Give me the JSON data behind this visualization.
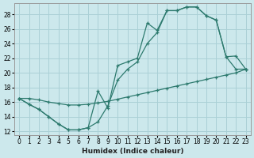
{
  "xlabel": "Humidex (Indice chaleur)",
  "bg_color": "#cce8ec",
  "grid_color": "#aad0d6",
  "line_color": "#2d7a6e",
  "xlim": [
    -0.5,
    23.5
  ],
  "ylim": [
    11.5,
    29.5
  ],
  "xticks": [
    0,
    1,
    2,
    3,
    4,
    5,
    6,
    7,
    8,
    9,
    10,
    11,
    12,
    13,
    14,
    15,
    16,
    17,
    18,
    19,
    20,
    21,
    22,
    23
  ],
  "yticks": [
    12,
    14,
    16,
    18,
    20,
    22,
    24,
    26,
    28
  ],
  "line1_x": [
    0,
    1,
    2,
    3,
    4,
    5,
    6,
    7,
    8,
    9,
    10,
    11,
    12,
    13,
    14,
    15,
    16,
    17,
    18,
    19,
    20,
    21,
    22,
    23
  ],
  "line1_y": [
    16.5,
    15.7,
    15.0,
    14.0,
    13.0,
    12.2,
    12.2,
    12.5,
    13.3,
    15.5,
    19.0,
    20.5,
    21.5,
    24.0,
    25.5,
    28.5,
    28.5,
    29.0,
    29.0,
    27.8,
    27.2,
    22.2,
    22.3,
    20.5
  ],
  "line2_x": [
    0,
    1,
    2,
    3,
    4,
    5,
    6,
    7,
    8,
    9,
    10,
    11,
    12,
    13,
    14,
    15,
    16,
    17,
    18,
    19,
    20,
    21,
    22,
    23
  ],
  "line2_y": [
    16.5,
    15.7,
    15.0,
    14.0,
    13.0,
    12.2,
    12.2,
    12.5,
    17.5,
    15.2,
    21.0,
    21.5,
    22.0,
    26.8,
    25.8,
    28.5,
    28.5,
    29.0,
    29.0,
    27.8,
    27.2,
    22.2,
    20.5,
    20.5
  ],
  "line3_x": [
    0,
    1,
    2,
    3,
    4,
    5,
    6,
    7,
    8,
    9,
    10,
    11,
    12,
    13,
    14,
    15,
    16,
    17,
    18,
    19,
    20,
    21,
    22,
    23
  ],
  "line3_y": [
    16.5,
    16.5,
    16.3,
    16.0,
    15.8,
    15.6,
    15.6,
    15.7,
    15.9,
    16.1,
    16.4,
    16.7,
    17.0,
    17.3,
    17.6,
    17.9,
    18.2,
    18.5,
    18.8,
    19.1,
    19.4,
    19.7,
    20.0,
    20.5
  ]
}
